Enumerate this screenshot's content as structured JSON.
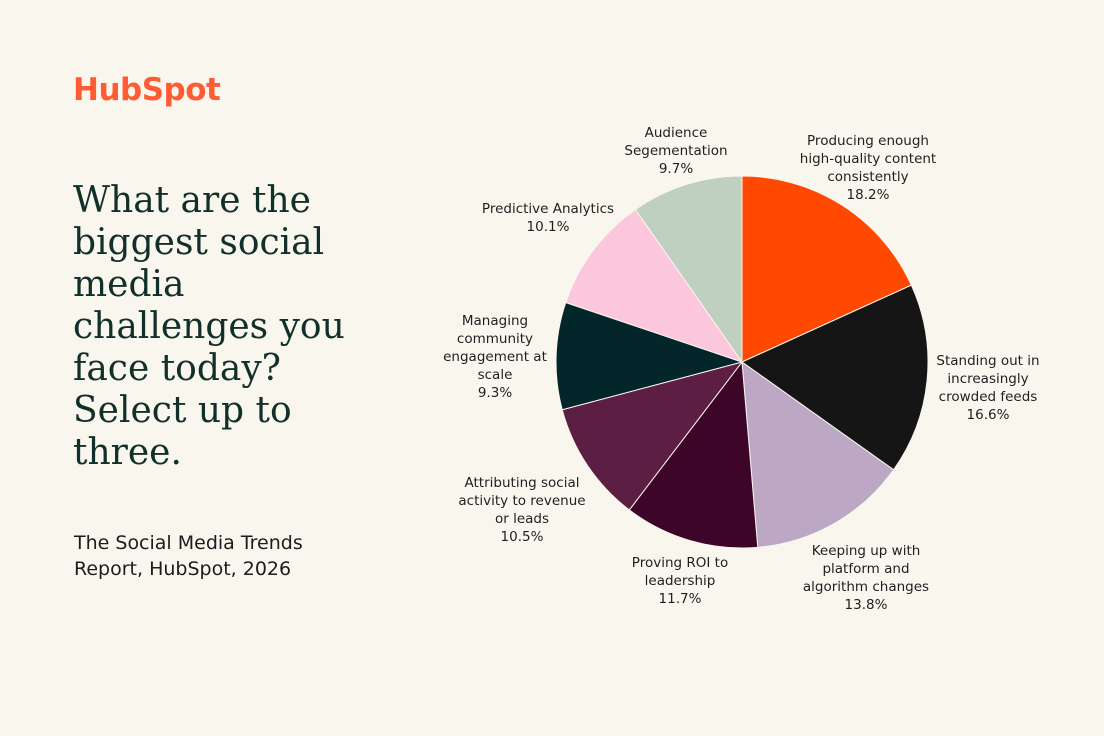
{
  "brand": {
    "name": "HubSpot",
    "color": "#ff5c35"
  },
  "title": "What are the biggest social media challenges you face today? Select up to three.",
  "source": "The Social Media Trends Report, HubSpot, 2026",
  "chart_data": {
    "type": "pie",
    "title": "",
    "legend": "none (direct labels)",
    "slices": [
      {
        "label": "Producing enough high-quality content consistently",
        "value": 18.2,
        "value_label": "18.2%",
        "color": "#ff4800"
      },
      {
        "label": "Standing out in increasingly crowded feeds",
        "value": 16.6,
        "value_label": "16.6%",
        "color": "#151515"
      },
      {
        "label": "Keeping up with platform and algorithm changes",
        "value": 13.8,
        "value_label": "13.8%",
        "color": "#bca8c4"
      },
      {
        "label": "Proving ROI to leadership",
        "value": 11.7,
        "value_label": "11.7%",
        "color": "#3d0629"
      },
      {
        "label": "Attributing social activity to revenue or leads",
        "value": 10.5,
        "value_label": "10.5%",
        "color": "#5c1f43"
      },
      {
        "label": "Managing community engagement at scale",
        "value": 9.3,
        "value_label": "9.3%",
        "color": "#03262a"
      },
      {
        "label": "Predictive Analytics",
        "value": 10.1,
        "value_label": "10.1%",
        "color": "#fcc6dc"
      },
      {
        "label": "Audience Segementation",
        "value": 9.7,
        "value_label": "9.7%",
        "color": "#bfcfc0"
      }
    ]
  }
}
